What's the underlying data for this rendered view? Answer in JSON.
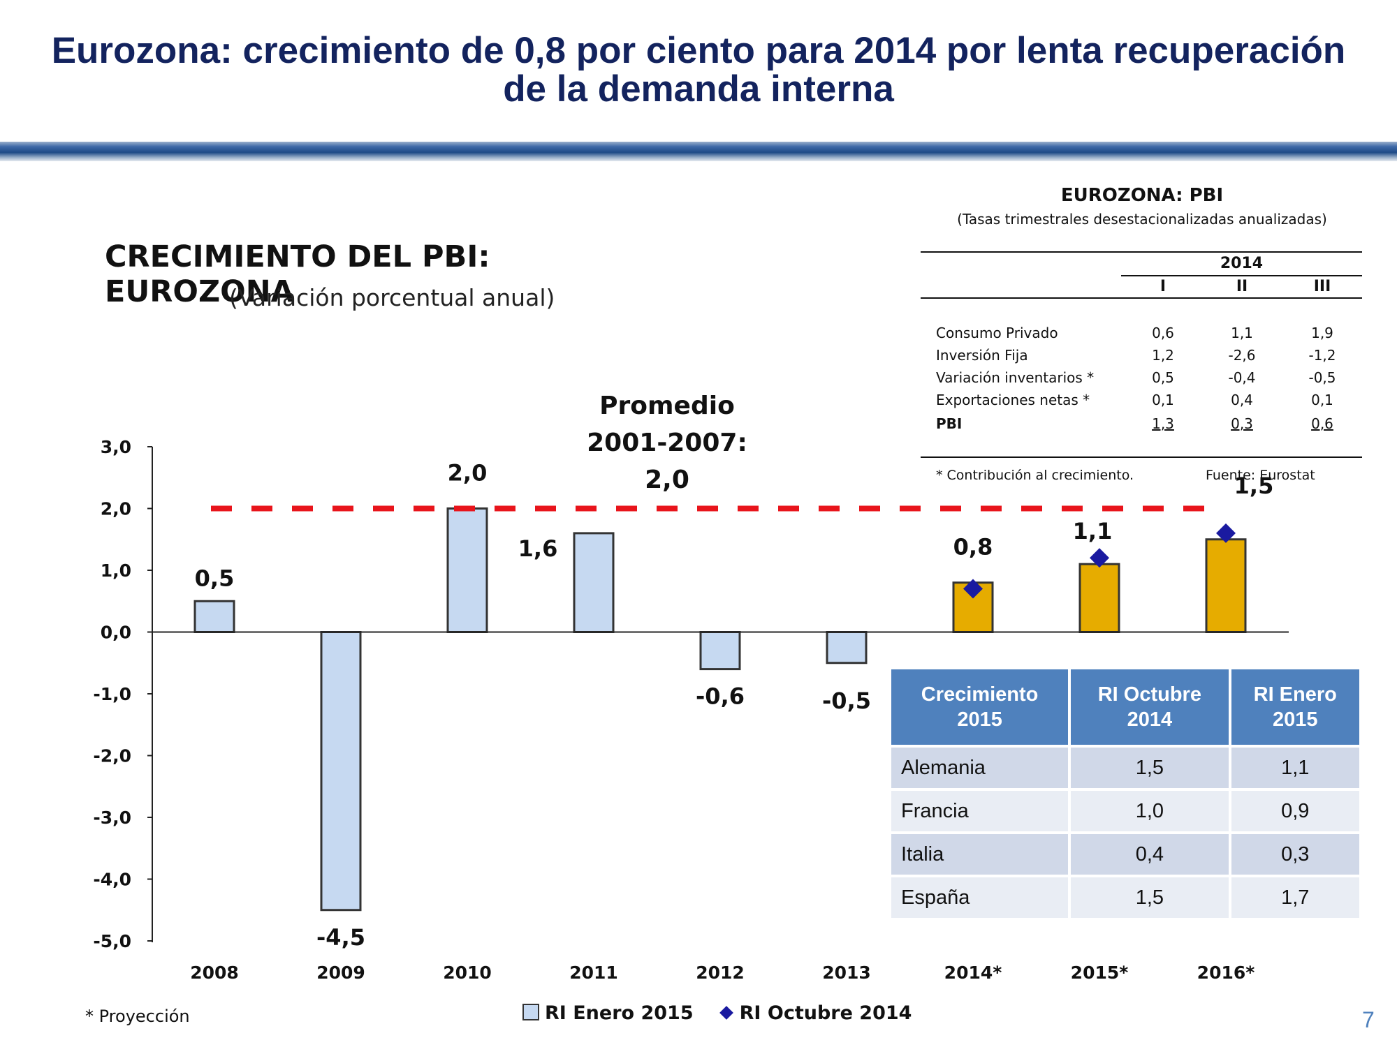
{
  "slide": {
    "title_line1": "Eurozona: crecimiento de 0,8 por ciento para 2014 por lenta recuperación",
    "title_line2": "de la demanda interna",
    "page_number": "7",
    "footnote": "* Proyección"
  },
  "chart_data": {
    "type": "bar",
    "title": "CRECIMIENTO DEL PBI: EUROZONA",
    "subtitle": "(Variación porcentual anual)",
    "categories": [
      "2008",
      "2009",
      "2010",
      "2011",
      "2012",
      "2013",
      "2014*",
      "2015*",
      "2016*"
    ],
    "y_ticks": [
      "3,0",
      "2,0",
      "1,0",
      "0,0",
      "-1,0",
      "-2,0",
      "-3,0",
      "-4,0",
      "-5,0"
    ],
    "ylim": [
      -5,
      3
    ],
    "grid": false,
    "series": [
      {
        "name": "RI Enero 2015",
        "values": [
          0.5,
          -4.5,
          2.0,
          1.6,
          -0.6,
          -0.5,
          0.8,
          1.1,
          1.5
        ],
        "labels": [
          "0,5",
          "-4,5",
          "2,0",
          "1,6",
          "-0,6",
          "-0,5",
          "0,8",
          "1,1",
          "1,5"
        ],
        "colors": [
          "#c6d9f1",
          "#c6d9f1",
          "#c6d9f1",
          "#c6d9f1",
          "#c6d9f1",
          "#c6d9f1",
          "#e6ac00",
          "#e6ac00",
          "#e6ac00"
        ]
      },
      {
        "name": "RI Octubre 2014",
        "type": "scatter",
        "categories": [
          "2014*",
          "2015*",
          "2016*"
        ],
        "values": [
          0.7,
          1.2,
          1.6
        ],
        "color": "#1a1aa0"
      }
    ],
    "reference_line": {
      "value": 2.0,
      "label_line1": "Promedio",
      "label_line2": "2001-2007:",
      "label_line3": "2,0",
      "color": "#e8141b"
    },
    "legend_position": "bottom"
  },
  "pbi_table": {
    "title": "EUROZONA: PBI",
    "subtitle": "(Tasas trimestrales desestacionalizadas anualizadas)",
    "year": "2014",
    "quarters": [
      "I",
      "II",
      "III"
    ],
    "rows": [
      {
        "label": "Consumo Privado",
        "values": [
          "0,6",
          "1,1",
          "1,9"
        ]
      },
      {
        "label": "Inversión Fija",
        "values": [
          "1,2",
          "-2,6",
          "-1,2"
        ]
      },
      {
        "label": "Variación inventarios *",
        "values": [
          "0,5",
          "-0,4",
          "-0,5"
        ]
      },
      {
        "label": "Exportaciones netas *",
        "values": [
          "0,1",
          "0,4",
          "0,1"
        ]
      },
      {
        "label": "PBI",
        "values": [
          "1,3",
          "0,3",
          "0,6"
        ]
      }
    ],
    "note": "* Contribución al crecimiento.",
    "source": "Fuente: Eurostat"
  },
  "growth_table": {
    "headers": [
      [
        "Crecimiento",
        "2015"
      ],
      [
        "RI Octubre",
        "2014"
      ],
      [
        "RI Enero",
        "2015"
      ]
    ],
    "rows": [
      {
        "country": "Alemania",
        "oct": "1,5",
        "ene": "1,1"
      },
      {
        "country": "Francia",
        "oct": "1,0",
        "ene": "0,9"
      },
      {
        "country": "Italia",
        "oct": "0,4",
        "ene": "0,3"
      },
      {
        "country": "España",
        "oct": "1,5",
        "ene": "1,7"
      }
    ]
  }
}
